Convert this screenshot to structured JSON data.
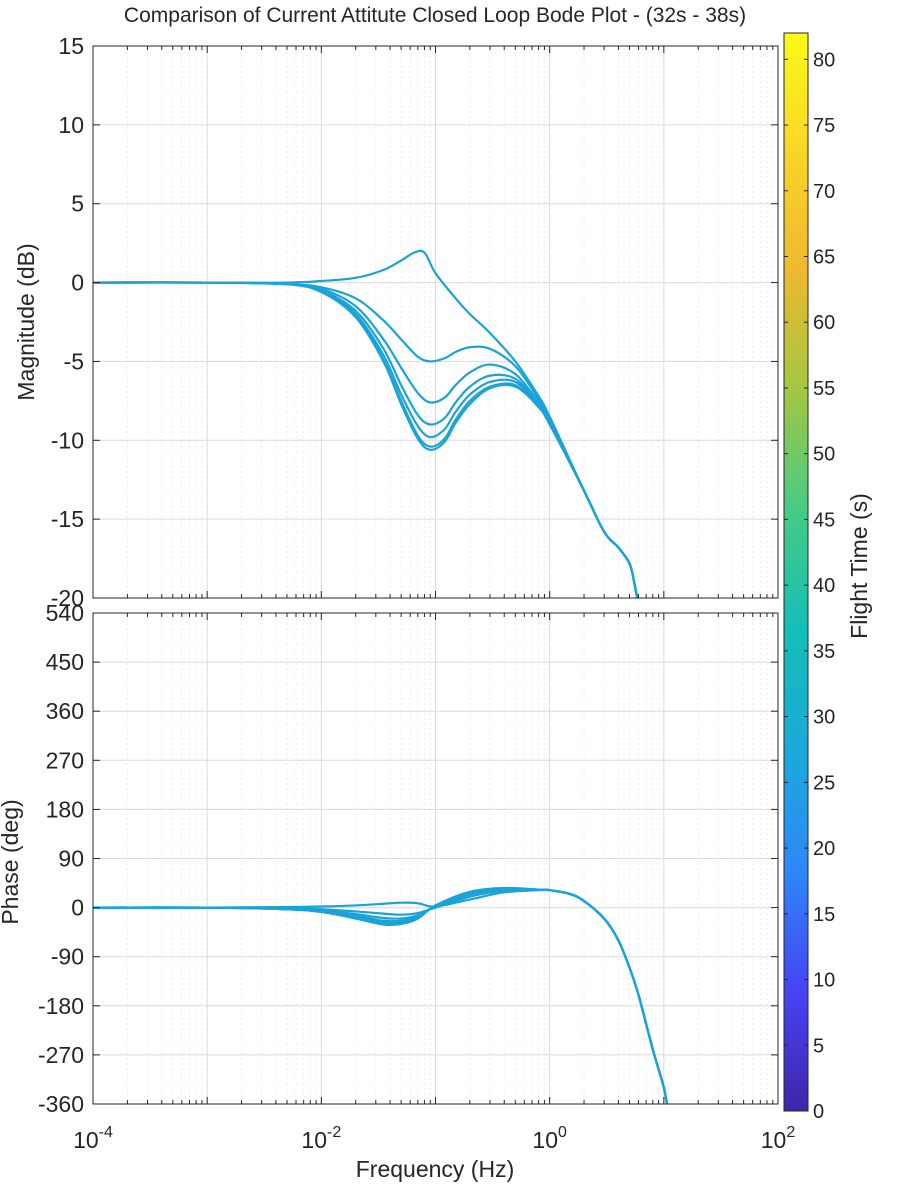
{
  "figure": {
    "title": "Comparison of Current Attitute Closed Loop Bode Plot - (32s - 38s)"
  },
  "chart_data": [
    {
      "type": "line",
      "panel": "magnitude",
      "title": "Comparison of Current Attitute Closed Loop Bode Plot - (32s - 38s)",
      "xlabel": "",
      "ylabel": "Magnitude (dB)",
      "xscale": "log",
      "xlim": [
        0.0001,
        100
      ],
      "ylim": [
        -20,
        15
      ],
      "yticks": [
        "15",
        "10",
        "5",
        "0",
        "-5",
        "-10",
        "-15",
        "-20"
      ],
      "grid": true,
      "color": "#1ba3d9",
      "series": [
        {
          "x": [
            0.0001,
            0.001,
            0.005,
            0.01,
            0.02,
            0.035,
            0.05,
            0.065,
            0.08,
            0.1,
            0.15,
            0.2,
            0.3,
            0.5,
            0.8,
            1,
            2,
            3,
            4,
            5,
            5.5,
            6
          ],
          "y": [
            0,
            0,
            0,
            0.1,
            0.3,
            0.8,
            1.4,
            1.9,
            1.9,
            0.6,
            -1.0,
            -2.0,
            -3.2,
            -5.0,
            -7.2,
            -8.5,
            -13.2,
            -15.8,
            -16.8,
            -17.8,
            -19.0,
            -20.5
          ]
        },
        {
          "x": [
            0.0001,
            0.001,
            0.005,
            0.01,
            0.02,
            0.035,
            0.05,
            0.07,
            0.09,
            0.12,
            0.15,
            0.2,
            0.3,
            0.5,
            0.8,
            1,
            2,
            3,
            4,
            5,
            5.5,
            6
          ],
          "y": [
            0,
            0,
            -0.1,
            -0.3,
            -1.0,
            -2.4,
            -3.6,
            -4.7,
            -5.0,
            -4.8,
            -4.4,
            -4.1,
            -4.2,
            -5.3,
            -7.4,
            -8.6,
            -13.2,
            -15.8,
            -16.8,
            -17.8,
            -19.0,
            -20.5
          ]
        },
        {
          "x": [
            0.0001,
            0.001,
            0.005,
            0.01,
            0.02,
            0.035,
            0.05,
            0.07,
            0.09,
            0.12,
            0.15,
            0.2,
            0.3,
            0.5,
            0.8,
            1,
            2,
            3,
            4,
            5,
            5.5,
            6
          ],
          "y": [
            0,
            0,
            -0.1,
            -0.4,
            -1.5,
            -3.6,
            -5.4,
            -7.0,
            -7.6,
            -7.3,
            -6.5,
            -5.7,
            -5.2,
            -5.8,
            -7.6,
            -8.7,
            -13.2,
            -15.8,
            -16.8,
            -17.8,
            -19.0,
            -20.5
          ]
        },
        {
          "x": [
            0.0001,
            0.001,
            0.005,
            0.01,
            0.02,
            0.035,
            0.05,
            0.07,
            0.09,
            0.12,
            0.15,
            0.2,
            0.3,
            0.5,
            0.8,
            1,
            2,
            3,
            4,
            5,
            5.5,
            6
          ],
          "y": [
            0,
            0,
            -0.1,
            -0.5,
            -1.8,
            -4.2,
            -6.5,
            -8.4,
            -9.0,
            -8.6,
            -7.6,
            -6.6,
            -5.9,
            -6.1,
            -7.7,
            -8.8,
            -13.2,
            -15.8,
            -16.8,
            -17.8,
            -19.0,
            -20.5
          ]
        },
        {
          "x": [
            0.0001,
            0.001,
            0.005,
            0.01,
            0.02,
            0.035,
            0.05,
            0.07,
            0.09,
            0.12,
            0.15,
            0.2,
            0.3,
            0.5,
            0.8,
            1,
            2,
            3,
            4,
            5,
            5.5,
            6
          ],
          "y": [
            0,
            0,
            -0.1,
            -0.5,
            -2.0,
            -4.6,
            -7.1,
            -9.1,
            -9.8,
            -9.3,
            -8.2,
            -7.1,
            -6.3,
            -6.3,
            -7.8,
            -8.9,
            -13.2,
            -15.8,
            -16.8,
            -17.8,
            -19.0,
            -20.5
          ]
        },
        {
          "x": [
            0.0001,
            0.001,
            0.005,
            0.01,
            0.02,
            0.035,
            0.05,
            0.07,
            0.09,
            0.12,
            0.15,
            0.2,
            0.3,
            0.5,
            0.8,
            1,
            2,
            3,
            4,
            5,
            5.5,
            6
          ],
          "y": [
            0,
            0,
            -0.1,
            -0.6,
            -2.1,
            -4.9,
            -7.5,
            -9.7,
            -10.4,
            -9.9,
            -8.7,
            -7.5,
            -6.6,
            -6.5,
            -7.9,
            -8.9,
            -13.2,
            -15.8,
            -16.8,
            -17.8,
            -19.0,
            -20.5
          ]
        },
        {
          "x": [
            0.0001,
            0.001,
            0.005,
            0.01,
            0.02,
            0.035,
            0.05,
            0.07,
            0.09,
            0.12,
            0.15,
            0.2,
            0.3,
            0.5,
            0.8,
            1,
            2,
            3,
            4,
            5,
            5.5,
            6
          ],
          "y": [
            0,
            0,
            -0.1,
            -0.6,
            -2.2,
            -5.0,
            -7.7,
            -9.9,
            -10.6,
            -10.1,
            -8.9,
            -7.7,
            -6.7,
            -6.6,
            -7.9,
            -9.0,
            -13.2,
            -15.8,
            -16.8,
            -17.8,
            -19.0,
            -20.5
          ]
        }
      ]
    },
    {
      "type": "line",
      "panel": "phase",
      "xlabel": "Frequency  (Hz)",
      "ylabel": "Phase (deg)",
      "xscale": "log",
      "xlim": [
        0.0001,
        100
      ],
      "ylim": [
        -360,
        540
      ],
      "yticks": [
        "540",
        "450",
        "360",
        "270",
        "180",
        "90",
        "0",
        "-90",
        "-180",
        "-270",
        "-360"
      ],
      "xticks": [
        {
          "base": "10",
          "exp": "-4"
        },
        {
          "base": "10",
          "exp": "-2"
        },
        {
          "base": "10",
          "exp": "0"
        },
        {
          "base": "10",
          "exp": "2"
        }
      ],
      "grid": true,
      "color": "#1ba3d9",
      "series": [
        {
          "x": [
            0.0001,
            0.001,
            0.005,
            0.01,
            0.02,
            0.035,
            0.05,
            0.07,
            0.1,
            0.2,
            0.4,
            0.8,
            1,
            1.5,
            2,
            3,
            4,
            5,
            6,
            8,
            10,
            11
          ],
          "y": [
            0,
            0,
            1,
            2,
            4,
            7,
            9,
            8,
            2,
            15,
            28,
            32,
            32,
            25,
            12,
            -20,
            -60,
            -110,
            -160,
            -260,
            -330,
            -380
          ]
        },
        {
          "x": [
            0.0001,
            0.001,
            0.005,
            0.01,
            0.02,
            0.035,
            0.05,
            0.07,
            0.1,
            0.2,
            0.4,
            0.8,
            1,
            1.5,
            2,
            3,
            4,
            5,
            6,
            8,
            10,
            11
          ],
          "y": [
            0,
            0,
            -1,
            -3,
            -7,
            -11,
            -13,
            -10,
            0,
            20,
            31,
            33,
            32,
            25,
            12,
            -20,
            -60,
            -110,
            -160,
            -260,
            -330,
            -380
          ]
        },
        {
          "x": [
            0.0001,
            0.001,
            0.005,
            0.01,
            0.02,
            0.035,
            0.05,
            0.07,
            0.1,
            0.2,
            0.4,
            0.8,
            1,
            1.5,
            2,
            3,
            4,
            5,
            6,
            8,
            10,
            11
          ],
          "y": [
            0,
            0,
            -2,
            -5,
            -12,
            -19,
            -20,
            -14,
            2,
            24,
            33,
            33,
            32,
            25,
            12,
            -20,
            -60,
            -110,
            -160,
            -260,
            -330,
            -380
          ]
        },
        {
          "x": [
            0.0001,
            0.001,
            0.005,
            0.01,
            0.02,
            0.035,
            0.05,
            0.07,
            0.1,
            0.2,
            0.4,
            0.8,
            1,
            1.5,
            2,
            3,
            4,
            5,
            6,
            8,
            10,
            11
          ],
          "y": [
            0,
            0,
            -2,
            -6,
            -15,
            -24,
            -24,
            -16,
            3,
            26,
            34,
            33,
            32,
            25,
            12,
            -20,
            -60,
            -110,
            -160,
            -260,
            -330,
            -380
          ]
        },
        {
          "x": [
            0.0001,
            0.001,
            0.005,
            0.01,
            0.02,
            0.035,
            0.05,
            0.07,
            0.1,
            0.2,
            0.4,
            0.8,
            1,
            1.5,
            2,
            3,
            4,
            5,
            6,
            8,
            10,
            11
          ],
          "y": [
            0,
            0,
            -3,
            -7,
            -17,
            -27,
            -27,
            -18,
            3,
            27,
            35,
            33,
            32,
            25,
            12,
            -20,
            -60,
            -110,
            -160,
            -260,
            -330,
            -380
          ]
        },
        {
          "x": [
            0.0001,
            0.001,
            0.005,
            0.01,
            0.02,
            0.035,
            0.05,
            0.07,
            0.1,
            0.2,
            0.4,
            0.8,
            1,
            1.5,
            2,
            3,
            4,
            5,
            6,
            8,
            10,
            11
          ],
          "y": [
            0,
            0,
            -3,
            -8,
            -19,
            -30,
            -29,
            -19,
            4,
            28,
            35,
            33,
            32,
            25,
            12,
            -20,
            -60,
            -110,
            -160,
            -260,
            -330,
            -380
          ]
        },
        {
          "x": [
            0.0001,
            0.001,
            0.005,
            0.01,
            0.02,
            0.035,
            0.05,
            0.07,
            0.1,
            0.2,
            0.4,
            0.8,
            1,
            1.5,
            2,
            3,
            4,
            5,
            6,
            8,
            10,
            11
          ],
          "y": [
            0,
            0,
            -3,
            -8,
            -20,
            -31,
            -30,
            -20,
            4,
            29,
            36,
            33,
            32,
            25,
            12,
            -20,
            -60,
            -110,
            -160,
            -260,
            -330,
            -380
          ]
        }
      ]
    },
    {
      "type": "heatmap",
      "panel": "colorbar",
      "label": "Flight Time (s)",
      "range": [
        0,
        82
      ],
      "ticks": [
        "0",
        "5",
        "10",
        "15",
        "20",
        "25",
        "30",
        "35",
        "40",
        "45",
        "50",
        "55",
        "60",
        "65",
        "70",
        "75",
        "80"
      ],
      "colormap": [
        "#3e26a8",
        "#4743f6",
        "#2e87f7",
        "#1ba9da",
        "#13beb8",
        "#45cb86",
        "#a1c742",
        "#edb930",
        "#f9d428",
        "#f9fb15"
      ]
    }
  ]
}
